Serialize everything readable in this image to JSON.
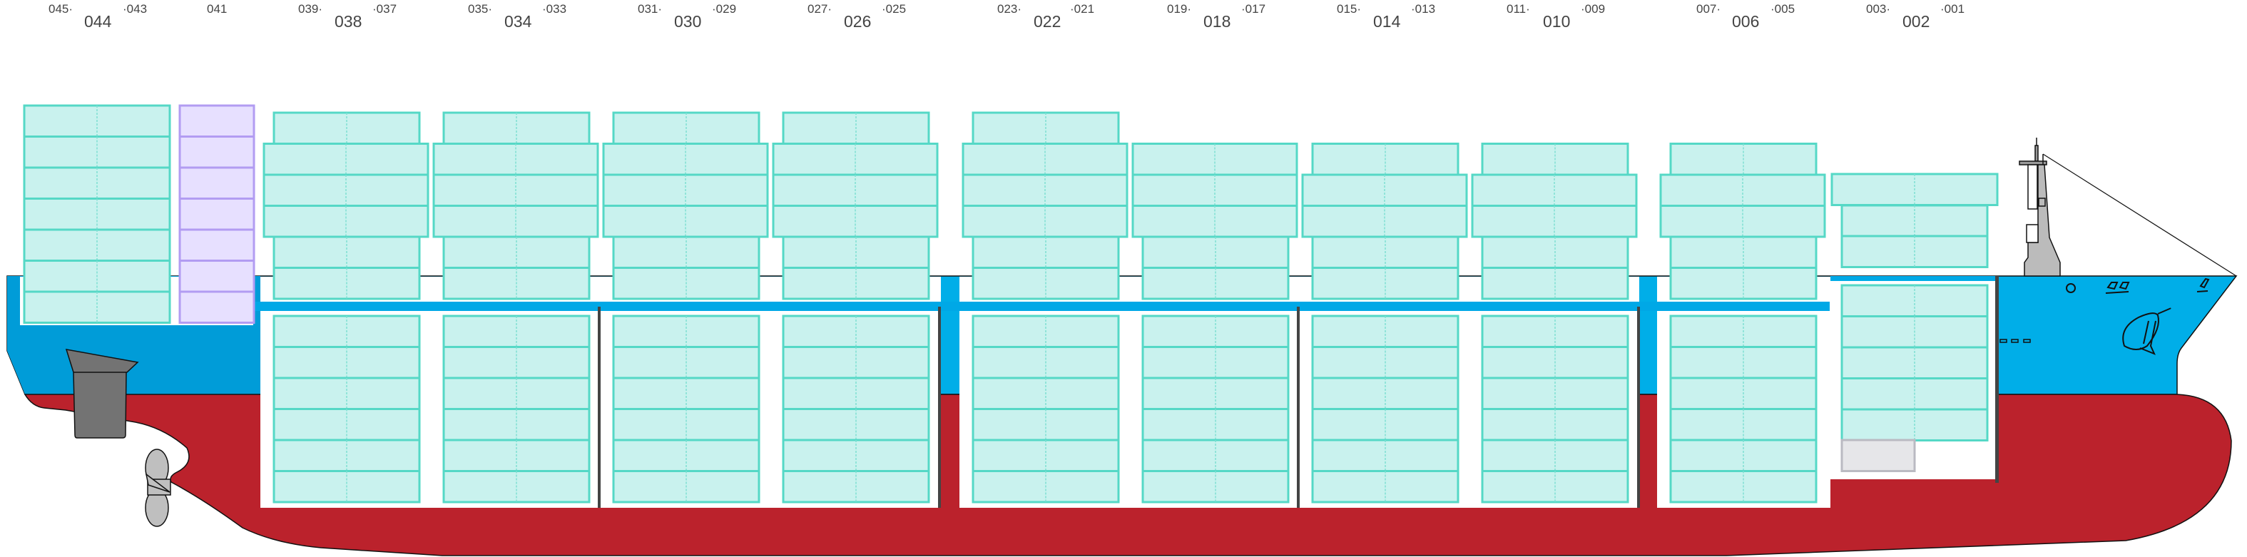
{
  "bay_labels": {
    "small": [
      "045·",
      "·043",
      "041",
      "039·",
      "·037",
      "035·",
      "·033",
      "031·",
      "·029",
      "027·",
      "·025",
      "023·",
      "·021",
      "019·",
      "·017",
      "015·",
      "·013",
      "011·",
      "·009",
      "007·",
      "·005",
      "003·",
      "·001"
    ],
    "large": [
      "044",
      "038",
      "034",
      "030",
      "026",
      "022",
      "018",
      "014",
      "010",
      "006",
      "002"
    ]
  },
  "colors": {
    "hull_upper": "#00a8e6",
    "hull_lower": "#bb222c",
    "container": "#c9f2ee",
    "container_border": "#55d8c6",
    "container_special": "#e7e0ff",
    "container_empty": "#e6e6e9",
    "bulkhead": "#444444"
  }
}
